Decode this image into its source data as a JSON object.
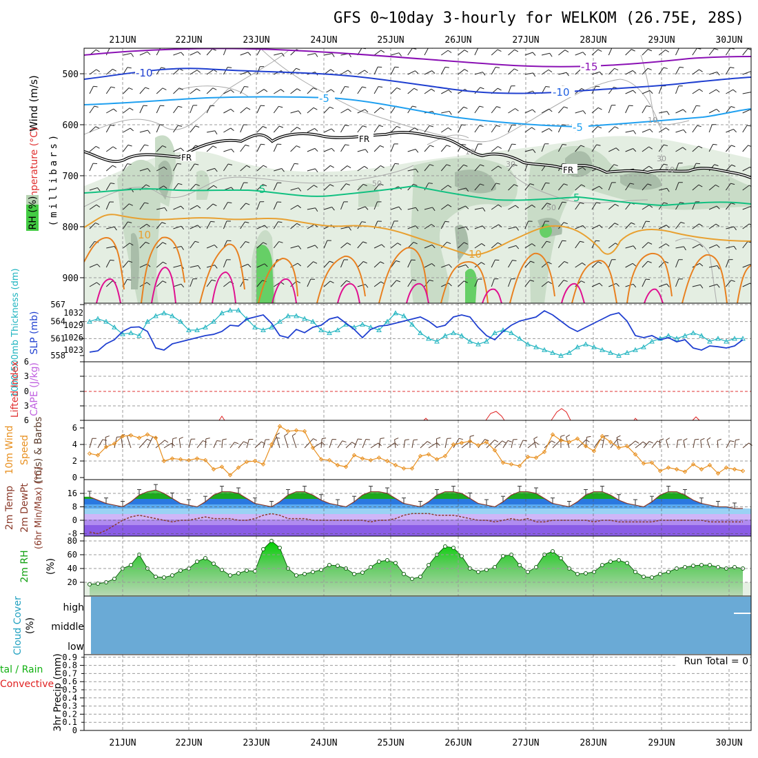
{
  "title": "GFS 0~10day 3-hourly for WELKOM (26.75E, 28S)",
  "dates": [
    "21JUN",
    "22JUN",
    "23JUN",
    "24JUN",
    "25JUN",
    "26JUN",
    "27JUN",
    "28JUN",
    "29JUN",
    "30JUN"
  ],
  "colors": {
    "temp_purple": "#8a10b4",
    "temp_blue_dark": "#1f3fd0",
    "temp_blue_mid": "#1f5fe0",
    "temp_cyan": "#1fa0f0",
    "temp_green": "#10c080",
    "temp_orange": "#e8a030",
    "temp_orange_dark": "#e88020",
    "temp_pink": "#e01090",
    "rh_light": "#e6f0e4",
    "rh_mid": "#c8dcc6",
    "rh_dark": "#a8bca8",
    "rh_green": "#60d060",
    "slp": "#1f3fd0",
    "thickness": "#20b4c0",
    "wind10m": "#e89020",
    "cloud": "#6aaad6",
    "precip_total": "#20b020",
    "precip_conv": "#e02020",
    "cape": "#c060e0",
    "lifted": "#e02020"
  },
  "panels": {
    "upper_air": {
      "ylabel_wind": "Wind (m/s)",
      "ylabel_temp": "Temperature (°C)",
      "ylabel_rh": "RH (%)",
      "ylabel_mb": "(millibars)",
      "yticks": [
        "500",
        "600",
        "700",
        "800",
        "900"
      ],
      "contour_labels": [
        {
          "text": "-10",
          "color": "temp_blue_dark"
        },
        {
          "text": "-15",
          "color": "temp_purple"
        },
        {
          "text": "-10",
          "color": "temp_blue_mid"
        },
        {
          "text": "-5",
          "color": "temp_cyan"
        },
        {
          "text": "-5",
          "color": "temp_cyan"
        },
        {
          "text": "FR",
          "color": "black"
        },
        {
          "text": "FR",
          "color": "black"
        },
        {
          "text": "FR",
          "color": "black"
        },
        {
          "text": "5",
          "color": "temp_green"
        },
        {
          "text": "5",
          "color": "temp_green"
        },
        {
          "text": "10",
          "color": "temp_orange"
        },
        {
          "text": "10",
          "color": "temp_orange"
        },
        {
          "text": "10",
          "color": "gray"
        },
        {
          "text": "10",
          "color": "gray"
        },
        {
          "text": "30",
          "color": "gray"
        },
        {
          "text": "30",
          "color": "gray"
        },
        {
          "text": "50",
          "color": "gray"
        },
        {
          "text": "50",
          "color": "gray"
        },
        {
          "text": "50",
          "color": "gray"
        }
      ]
    },
    "slp": {
      "ylabel_thk": "1000-500mb Thickness (dm)",
      "ylabel_slp": "SLP (mb)",
      "yticks_left": [
        "567",
        "564",
        "561",
        "558"
      ],
      "yticks_right": [
        "1032",
        "1029",
        "1026",
        "1023"
      ]
    },
    "cape": {
      "ylabel_li": "Lifted Index",
      "ylabel_cape": "CAPE (J/kg)",
      "yticks": [
        "-6",
        "-3",
        "0",
        "3",
        "6"
      ]
    },
    "wind10m": {
      "ylabel_a": "10m Wind",
      "ylabel_b": "Speed",
      "ylabel_c": "(m/s) & Barbs",
      "yticks": [
        "6",
        "4",
        "2",
        "0"
      ]
    },
    "temp2m": {
      "ylabel_a": "2m Temp",
      "ylabel_b": "2m DewPt",
      "ylabel_c": "(6hr Min/Max) (°C)",
      "yticks": [
        "16",
        "8",
        "0",
        "-8"
      ]
    },
    "rh2m": {
      "ylabel_a": "2m RH",
      "ylabel_b": "(%)",
      "yticks": [
        "80",
        "60",
        "40",
        "20"
      ]
    },
    "cloud": {
      "ylabel_a": "Cloud Cover",
      "ylabel_b": "(%)",
      "levels": [
        "high",
        "middle",
        "low"
      ]
    },
    "precip": {
      "ylabel_a": "tal / Rain",
      "ylabel_b": "Convective",
      "ylabel_c": "3hr Precip (mm)",
      "yticks": [
        "0.8",
        "0.6",
        "0.4",
        "0.2",
        "0"
      ],
      "extra_ticks": [
        "0.9",
        "0.7",
        "0.5",
        "0.3",
        "0.1"
      ],
      "run_total": "Run Total = 0"
    }
  },
  "chart_data": {
    "type": "line",
    "x_unit": "3-hourly steps from 20JUN 12Z",
    "slp_mb": [
      1022.5,
      1022.8,
      1024.5,
      1025.5,
      1027.5,
      1028.5,
      1028.6,
      1027.5,
      1023.5,
      1023.0,
      1024.5,
      1025.0,
      1025.5,
      1026.0,
      1026.5,
      1026.8,
      1027.5,
      1029.0,
      1028.8,
      1030.5,
      1031.0,
      1031.5,
      1029.5,
      1026.5,
      1026.0,
      1028.0,
      1027.2,
      1028.5,
      1029.0,
      1030.5,
      1031.0,
      1029.5,
      1028.0,
      1026.0,
      1028.0,
      1028.8,
      1029.0,
      1029.5,
      1030.0,
      1030.5,
      1031.0,
      1030.0,
      1028.5,
      1029.0,
      1031.0,
      1031.5,
      1031.0,
      1028.5,
      1026.5,
      1025.5,
      1027.5,
      1029.0,
      1030.0,
      1030.5,
      1031.0,
      1032.5,
      1031.5,
      1030.0,
      1028.5,
      1027.5,
      1028.5,
      1029.5,
      1030.5,
      1031.5,
      1032.0,
      1030.0,
      1026.5,
      1026.0,
      1026.5,
      1025.5,
      1026.0,
      1025.0,
      1025.5,
      1023.5,
      1023.0,
      1024.0,
      1023.8,
      1023.5,
      1024.0,
      1025.5
    ],
    "thickness_dm": [
      564.0,
      564.5,
      564.0,
      563.0,
      561.8,
      562.0,
      561.5,
      564.0,
      565.0,
      565.5,
      565.0,
      564.0,
      562.5,
      562.5,
      563.0,
      564.0,
      565.5,
      566.0,
      566.0,
      564.5,
      563.0,
      562.5,
      563.0,
      564.0,
      565.0,
      565.0,
      564.5,
      564.0,
      562.5,
      562.0,
      562.5,
      563.5,
      563.0,
      563.5,
      563.0,
      562.5,
      564.0,
      565.5,
      565.0,
      563.5,
      562.0,
      561.0,
      560.5,
      561.5,
      562.0,
      561.5,
      560.5,
      560.0,
      560.5,
      562.0,
      562.5,
      562.0,
      561.0,
      560.0,
      559.5,
      559.0,
      558.5,
      558.0,
      558.5,
      559.5,
      560.0,
      559.5,
      559.0,
      558.5,
      558.0,
      558.5,
      559.0,
      559.5,
      560.5,
      561.0,
      561.5,
      561.0,
      561.5,
      562.0,
      561.5,
      560.5,
      561.0,
      560.5,
      561.0,
      561.0
    ],
    "wind10m_ms": [
      2.9,
      2.7,
      3.7,
      4.1,
      5.0,
      5.1,
      4.8,
      5.2,
      4.8,
      2.0,
      2.3,
      2.2,
      2.1,
      2.3,
      2.1,
      1.0,
      1.3,
      0.3,
      1.2,
      1.9,
      2.0,
      1.6,
      4.0,
      6.2,
      5.6,
      5.7,
      5.6,
      3.6,
      2.2,
      2.1,
      1.5,
      1.3,
      2.7,
      2.3,
      2.1,
      2.4,
      2.0,
      1.5,
      1.1,
      1.1,
      2.6,
      2.8,
      2.2,
      2.6,
      4.0,
      4.2,
      4.4,
      3.9,
      4.3,
      3.3,
      1.8,
      1.6,
      1.4,
      2.5,
      2.4,
      3.1,
      5.2,
      4.5,
      4.3,
      4.7,
      3.8,
      3.2,
      5.0,
      4.3,
      3.6,
      3.8,
      2.8,
      1.7,
      1.8,
      0.8,
      1.2,
      1.0,
      0.7,
      1.6,
      1.0,
      1.5,
      0.5,
      1.2,
      1.0,
      0.8
    ],
    "temp2m_c": [
      14,
      12,
      10,
      9,
      8,
      11,
      15,
      17,
      18,
      16,
      13,
      10,
      9,
      8,
      11,
      15,
      17,
      17,
      16,
      13,
      10,
      9,
      8,
      11,
      15,
      17,
      17,
      15,
      12,
      10,
      9,
      8,
      11,
      15,
      17,
      17,
      16,
      13,
      10,
      9,
      8,
      11,
      15,
      17,
      17,
      16,
      13,
      10,
      9,
      8,
      11,
      15,
      17,
      17,
      16,
      13,
      10,
      9,
      8,
      11,
      15,
      17,
      17,
      15,
      12,
      10,
      9,
      8,
      11,
      15,
      17,
      17,
      15,
      12,
      10,
      9,
      8,
      8,
      7,
      7
    ],
    "dewpt2m_c": [
      -7,
      -8,
      -6,
      -3,
      0,
      2,
      3,
      2,
      1,
      0,
      -1,
      0,
      0,
      1,
      2,
      1,
      1,
      1,
      0,
      0,
      1,
      3,
      4,
      3,
      1,
      1,
      1,
      0,
      0,
      0,
      0,
      0,
      0,
      0,
      -1,
      0,
      0,
      1,
      3,
      4,
      4,
      4,
      3,
      3,
      3,
      2,
      1,
      0,
      0,
      -1,
      0,
      1,
      0,
      1,
      -1,
      -1,
      0,
      0,
      0,
      0,
      0,
      -1,
      0,
      0,
      -1,
      -1,
      -1,
      -1,
      -1,
      0,
      0,
      0,
      0,
      0,
      0,
      -1,
      -1,
      -1,
      -1,
      -1
    ],
    "rh2m_pct": [
      17,
      18,
      20,
      25,
      40,
      45,
      60,
      40,
      28,
      27,
      30,
      37,
      40,
      50,
      55,
      47,
      38,
      30,
      33,
      37,
      36,
      68,
      80,
      70,
      40,
      30,
      32,
      35,
      38,
      45,
      44,
      40,
      32,
      34,
      42,
      50,
      52,
      48,
      32,
      25,
      28,
      45,
      60,
      72,
      70,
      58,
      40,
      35,
      38,
      42,
      58,
      60,
      45,
      35,
      42,
      60,
      65,
      55,
      40,
      32,
      33,
      35,
      45,
      50,
      52,
      48,
      35,
      28,
      27,
      32,
      35,
      40,
      42,
      44,
      45,
      45,
      42,
      40,
      42,
      40
    ],
    "cloud_cover": {
      "high": 0,
      "middle": 100,
      "low": 0
    },
    "precip_mm": [],
    "run_total_mm": 0
  }
}
